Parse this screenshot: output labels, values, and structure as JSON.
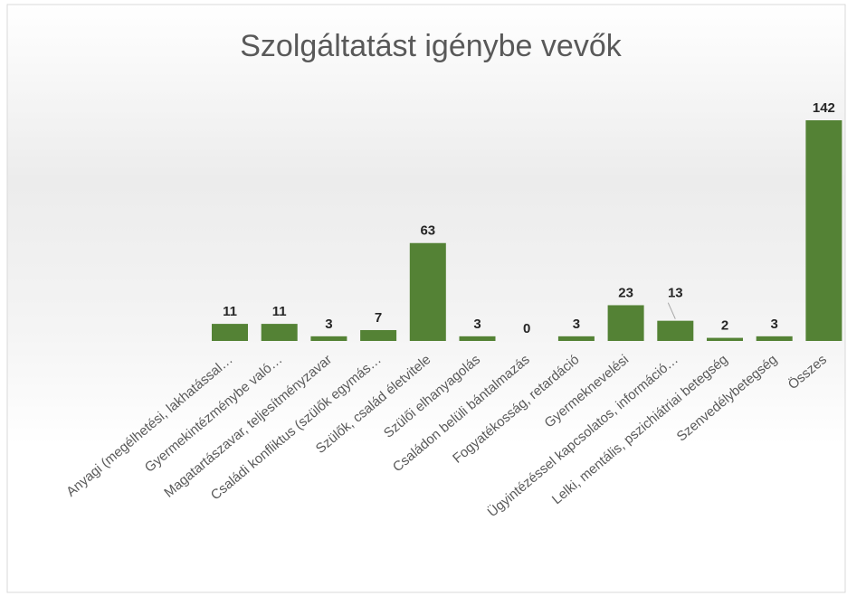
{
  "chart_data": {
    "type": "bar",
    "title": "Szolgáltatást igénybe vevők",
    "categories": [
      "Anyagi (megélhetési, lakhatással…",
      "Gyermekintézménybe való…",
      "Magatartászavar, teljesítményzavar",
      "Családi konfliktus (szülők egymás…",
      "Szülők, család életvitele",
      "Szülői elhanyagolás",
      "Családon belüli bántalmazás",
      "Fogyatékosság, retardáció",
      "Gyermeknevelési",
      "Ügyintézéssel kapcsolatos, információ…",
      "Lelki, mentális, pszichiátriai betegség",
      "Szenvedélybetegség",
      "Összes"
    ],
    "values": [
      11,
      11,
      3,
      7,
      63,
      3,
      0,
      3,
      23,
      13,
      2,
      3,
      142
    ],
    "color": "#548235"
  }
}
